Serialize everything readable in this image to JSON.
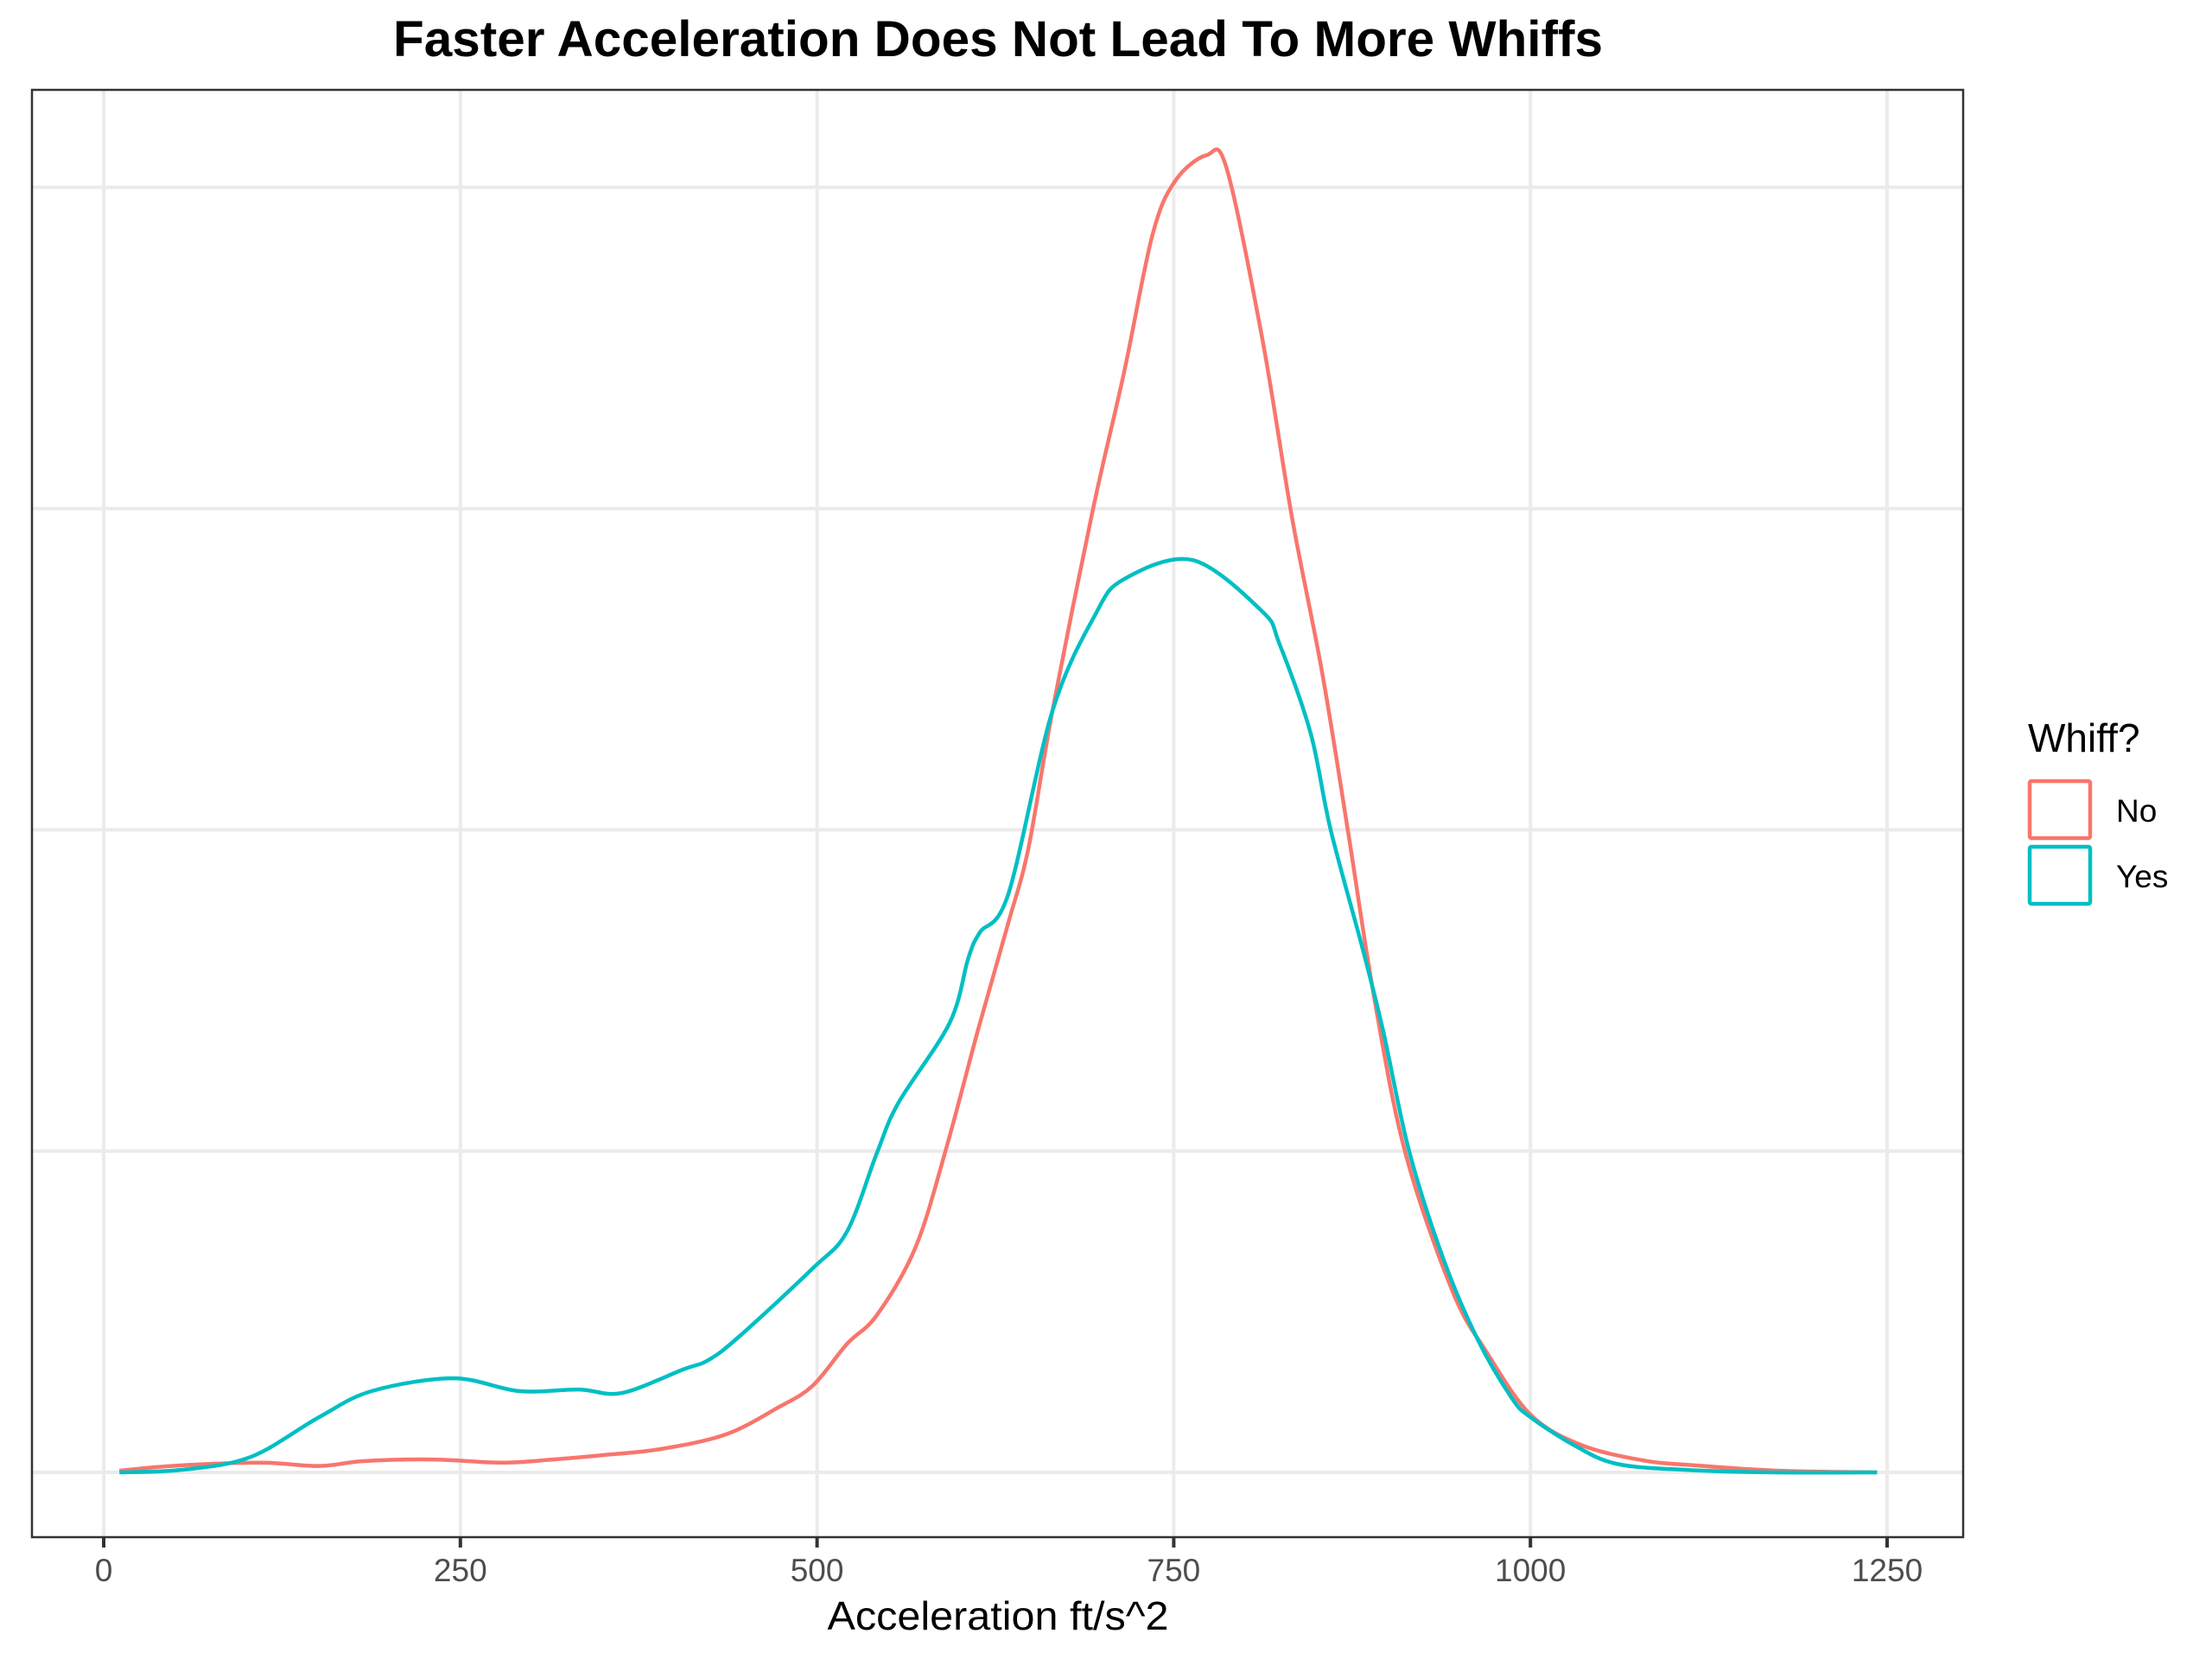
{
  "chart_data": {
    "type": "line",
    "subtype": "density",
    "title": "Faster Acceleration Does Not Lead To More Whiffs",
    "xlabel": "Acceleration ft/s^2",
    "ylabel": "",
    "xlim": [
      -30,
      1280
    ],
    "x_ticks": [
      0,
      250,
      500,
      750,
      1000,
      1250
    ],
    "x_tick_labels": [
      "0",
      "250",
      "500",
      "750",
      "1000",
      "1250"
    ],
    "y_ticks_hidden": true,
    "y_gridlines_units": [
      0,
      1,
      2,
      3,
      4
    ],
    "y_units_note": "relative density in units of gridline spacing (y tick labels not shown)",
    "ylim_units": [
      -0.2,
      4.3
    ],
    "grid": true,
    "legend": {
      "title": "Whiff?",
      "position": "right",
      "entries": [
        "No",
        "Yes"
      ]
    },
    "series": [
      {
        "name": "No",
        "color": "#F8766D",
        "points": [
          [
            11,
            0.005
          ],
          [
            48,
            0.02
          ],
          [
            109,
            0.03
          ],
          [
            151,
            0.02
          ],
          [
            182,
            0.035
          ],
          [
            230,
            0.04
          ],
          [
            279,
            0.03
          ],
          [
            315,
            0.04
          ],
          [
            351,
            0.054
          ],
          [
            391,
            0.073
          ],
          [
            436,
            0.118
          ],
          [
            472,
            0.2
          ],
          [
            497,
            0.27
          ],
          [
            521,
            0.4
          ],
          [
            542,
            0.49
          ],
          [
            569,
            0.7
          ],
          [
            590,
            1.0
          ],
          [
            613,
            1.38
          ],
          [
            634,
            1.71
          ],
          [
            648,
            1.94
          ],
          [
            665,
            2.37
          ],
          [
            693,
            2.99
          ],
          [
            715,
            3.42
          ],
          [
            735,
            3.85
          ],
          [
            751,
            4.02
          ],
          [
            773,
            4.1
          ],
          [
            787,
            4.06
          ],
          [
            812,
            3.53
          ],
          [
            833,
            2.97
          ],
          [
            854,
            2.49
          ],
          [
            872,
            2.0
          ],
          [
            890,
            1.49
          ],
          [
            912,
            1.0
          ],
          [
            945,
            0.568
          ],
          [
            969,
            0.376
          ],
          [
            1000,
            0.18
          ],
          [
            1035,
            0.086
          ],
          [
            1078,
            0.038
          ],
          [
            1114,
            0.022
          ],
          [
            1175,
            0.005
          ],
          [
            1243,
            0.0
          ]
        ]
      },
      {
        "name": "Yes",
        "color": "#00BFC4",
        "points": [
          [
            11,
            0.0
          ],
          [
            55,
            0.008
          ],
          [
            103,
            0.048
          ],
          [
            151,
            0.172
          ],
          [
            188,
            0.253
          ],
          [
            245,
            0.293
          ],
          [
            291,
            0.253
          ],
          [
            333,
            0.258
          ],
          [
            363,
            0.247
          ],
          [
            406,
            0.32
          ],
          [
            424,
            0.35
          ],
          [
            446,
            0.425
          ],
          [
            497,
            0.635
          ],
          [
            521,
            0.75
          ],
          [
            542,
            0.995
          ],
          [
            557,
            1.15
          ],
          [
            593,
            1.4
          ],
          [
            606,
            1.6
          ],
          [
            614,
            1.68
          ],
          [
            634,
            1.8
          ],
          [
            665,
            2.37
          ],
          [
            695,
            2.67
          ],
          [
            715,
            2.78
          ],
          [
            763,
            2.84
          ],
          [
            812,
            2.68
          ],
          [
            824,
            2.58
          ],
          [
            846,
            2.3
          ],
          [
            860,
            2.0
          ],
          [
            883,
            1.62
          ],
          [
            897,
            1.37
          ],
          [
            915,
            1.0
          ],
          [
            939,
            0.664
          ],
          [
            963,
            0.414
          ],
          [
            987,
            0.231
          ],
          [
            1000,
            0.172
          ],
          [
            1030,
            0.086
          ],
          [
            1060,
            0.027
          ],
          [
            1108,
            0.008
          ],
          [
            1169,
            0.0
          ],
          [
            1243,
            0.0
          ]
        ]
      }
    ]
  }
}
